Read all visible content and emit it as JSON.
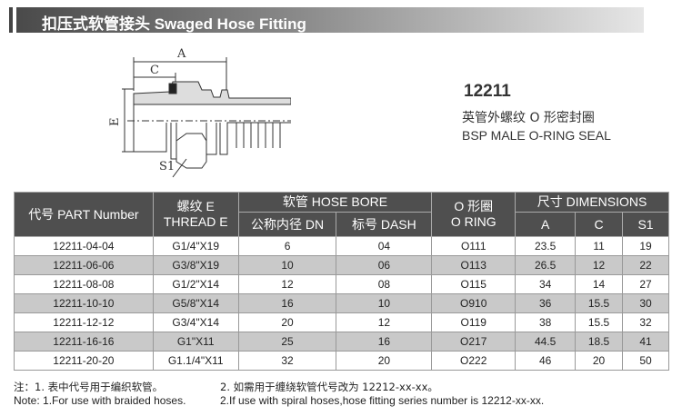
{
  "header": {
    "title": "扣压式软管接头  Swaged Hose Fitting"
  },
  "drawing": {
    "labels": {
      "a": "A",
      "c": "C",
      "e": "E",
      "s1": "S1"
    }
  },
  "product": {
    "model": "12211",
    "name_cn": "英管外螺纹 O 形密封圈",
    "name_en": "BSP MALE O-RING SEAL"
  },
  "table": {
    "headers": {
      "part": "代号 PART Number",
      "thread_cn": "螺纹 E",
      "thread_en": "THREAD E",
      "hose_bore": "软管 HOSE BORE",
      "dn": "公称内径 DN",
      "dash": "标号 DASH",
      "oring_cn": "O 形圈",
      "oring_en": "O RING",
      "dimensions": "尺寸 DIMENSIONS",
      "a": "A",
      "c": "C",
      "s1": "S1"
    },
    "rows": [
      [
        "12211-04-04",
        "G1/4\"X19",
        "6",
        "04",
        "O111",
        "23.5",
        "11",
        "19"
      ],
      [
        "12211-06-06",
        "G3/8\"X19",
        "10",
        "06",
        "O113",
        "26.5",
        "12",
        "22"
      ],
      [
        "12211-08-08",
        "G1/2\"X14",
        "12",
        "08",
        "O115",
        "34",
        "14",
        "27"
      ],
      [
        "12211-10-10",
        "G5/8\"X14",
        "16",
        "10",
        "O910",
        "36",
        "15.5",
        "30"
      ],
      [
        "12211-12-12",
        "G3/4\"X14",
        "20",
        "12",
        "O119",
        "38",
        "15.5",
        "32"
      ],
      [
        "12211-16-16",
        "G1\"X11",
        "25",
        "16",
        "O217",
        "44.5",
        "18.5",
        "41"
      ],
      [
        "12211-20-20",
        "G1.1/4\"X11",
        "32",
        "20",
        "O222",
        "46",
        "20",
        "50"
      ]
    ]
  },
  "notes": {
    "cn1": "注：1. 表中代号用于编织软管。",
    "cn2": "2. 如需用于缠绕软管代号改为 12212-xx-xx。",
    "en1": "Note: 1.For use with braided hoses.",
    "en2": "2.If use with spiral hoses,hose fitting series number is 12212-xx-xx."
  }
}
